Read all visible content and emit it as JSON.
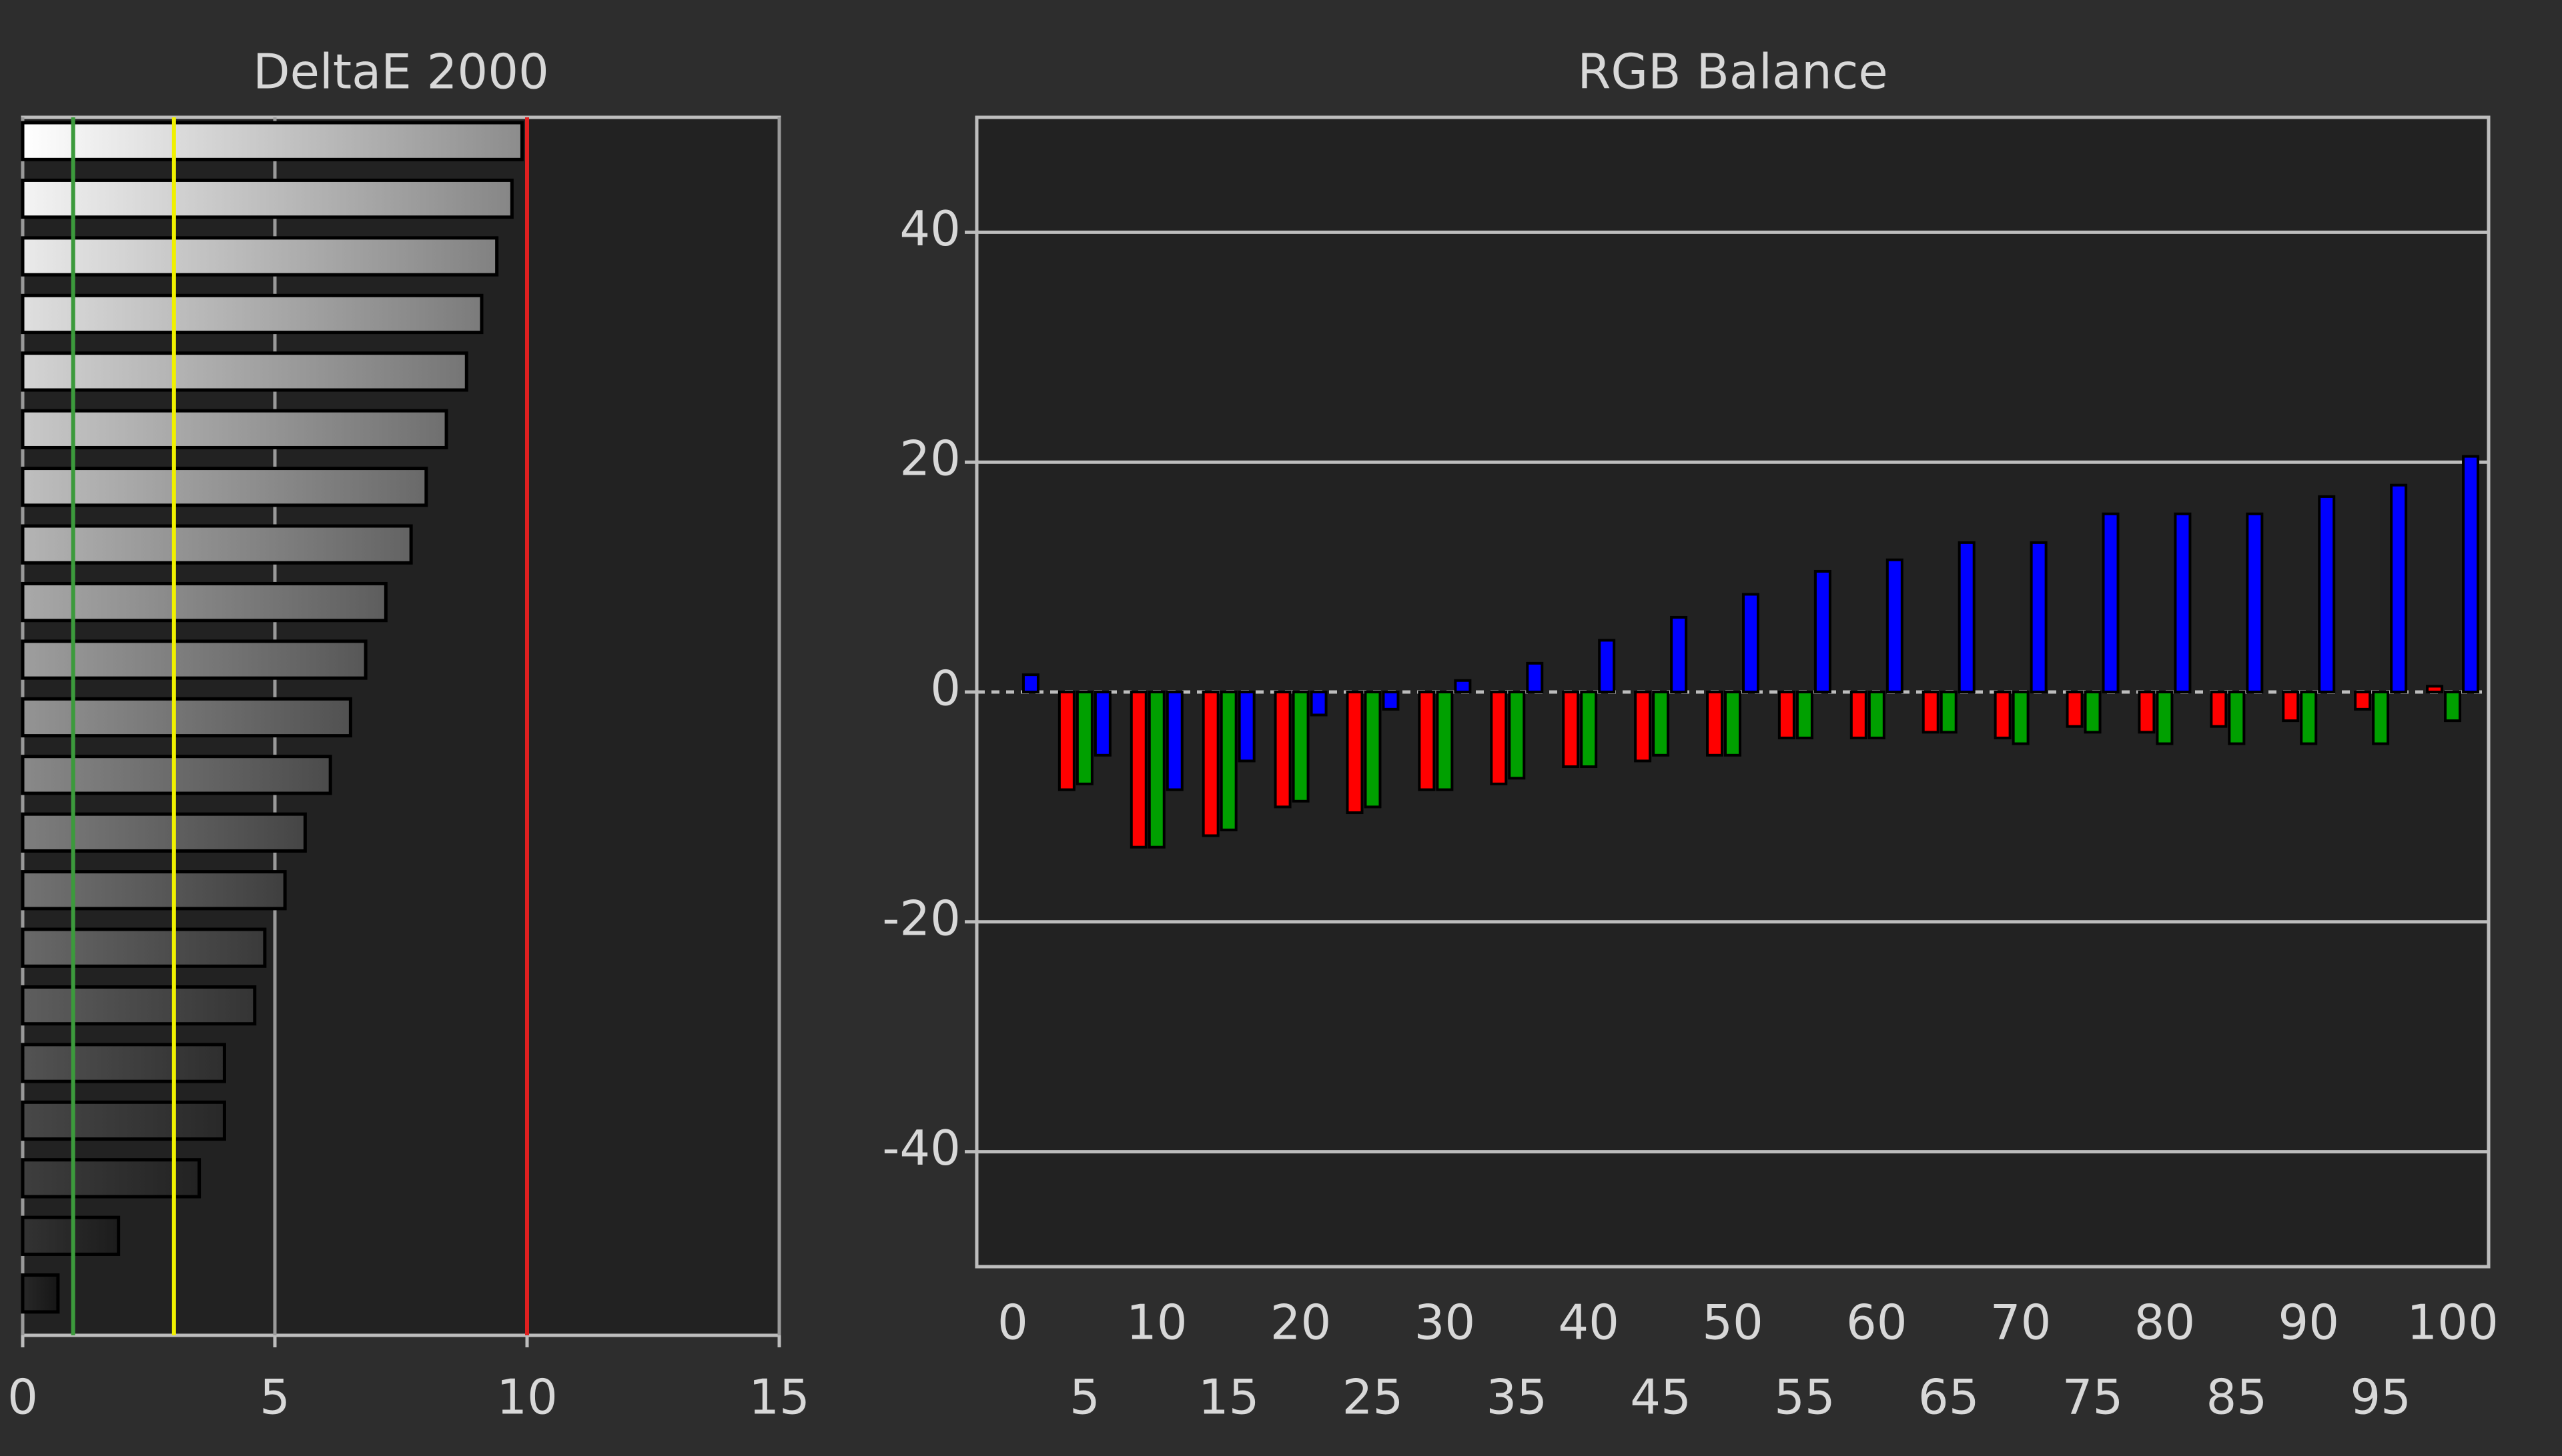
{
  "chart_data": [
    {
      "type": "hbar",
      "title": "DeltaE 2000",
      "values": [
        9.9,
        9.7,
        9.4,
        9.1,
        8.8,
        8.4,
        8.0,
        7.7,
        7.2,
        6.8,
        6.5,
        6.1,
        5.6,
        5.2,
        4.8,
        4.6,
        4.0,
        4.0,
        3.5,
        1.9,
        0.7
      ],
      "xlim": [
        0,
        15
      ],
      "xticks": [
        0,
        5,
        10,
        15
      ],
      "grid": true,
      "reference_lines": [
        {
          "value": 1,
          "color": "#3c9a3c"
        },
        {
          "value": 3,
          "color": "#f0f000"
        },
        {
          "value": 10,
          "color": "#e02020"
        }
      ]
    },
    {
      "type": "grouped_bar",
      "title": "RGB Balance",
      "categories": [
        "0",
        "5",
        "10",
        "15",
        "20",
        "25",
        "30",
        "35",
        "40",
        "45",
        "50",
        "55",
        "60",
        "65",
        "70",
        "75",
        "80",
        "85",
        "90",
        "95",
        "100"
      ],
      "series": [
        {
          "color": "#ff0000",
          "values": [
            0,
            -8.5,
            -13.5,
            -12.5,
            -10,
            -10.5,
            -8.5,
            -8,
            -6.5,
            -6,
            -5.5,
            -4,
            -4,
            -3.5,
            -4,
            -3,
            -3.5,
            -3,
            -2.5,
            -1.5,
            0.5
          ]
        },
        {
          "color": "#00a000",
          "values": [
            0,
            -8,
            -13.5,
            -12,
            -9.5,
            -10,
            -8.5,
            -7.5,
            -6.5,
            -5.5,
            -5.5,
            -4,
            -4,
            -3.5,
            -4.5,
            -3.5,
            -4.5,
            -4.5,
            -4.5,
            -4.5,
            -2.5
          ]
        },
        {
          "color": "#0000ff",
          "values": [
            1.5,
            -5.5,
            -8.5,
            -6,
            -2,
            -1.5,
            1,
            2.5,
            4.5,
            6.5,
            8.5,
            10.5,
            11.5,
            13,
            13,
            15.5,
            15.5,
            15.5,
            17,
            18,
            20.5
          ]
        }
      ],
      "ylim": [
        -50,
        50
      ],
      "yticks": [
        -40,
        -20,
        0,
        20,
        40
      ],
      "grid": true
    }
  ]
}
